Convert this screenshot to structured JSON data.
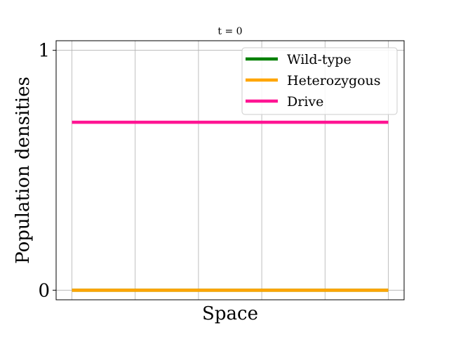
{
  "chart_data": {
    "type": "line",
    "title": "t = 0",
    "xlabel": "Space",
    "ylabel": "Population densities",
    "ylim": [
      -0.04,
      1.04
    ],
    "xlim": [
      -0.05,
      1.05
    ],
    "yticks": [
      0,
      1
    ],
    "ytick_labels": [
      "0",
      "1"
    ],
    "xgrid": [
      0,
      0.2,
      0.4,
      0.6,
      0.8,
      1.0
    ],
    "grid": true,
    "legend_placement": "top-right",
    "x": [
      0,
      1
    ],
    "series": [
      {
        "name": "Wild-type",
        "color": "#008000",
        "values": [
          0,
          0
        ]
      },
      {
        "name": "Heterozygous",
        "color": "#FFA500",
        "values": [
          0,
          0
        ]
      },
      {
        "name": "Drive",
        "color": "#FF1493",
        "values": [
          0.7,
          0.7
        ]
      }
    ]
  }
}
